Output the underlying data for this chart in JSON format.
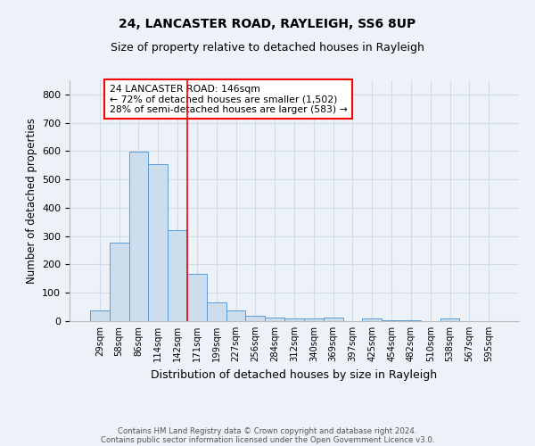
{
  "title1": "24, LANCASTER ROAD, RAYLEIGH, SS6 8UP",
  "title2": "Size of property relative to detached houses in Rayleigh",
  "xlabel": "Distribution of detached houses by size in Rayleigh",
  "ylabel": "Number of detached properties",
  "footer1": "Contains HM Land Registry data © Crown copyright and database right 2024.",
  "footer2": "Contains public sector information licensed under the Open Government Licence v3.0.",
  "bar_labels": [
    "29sqm",
    "58sqm",
    "86sqm",
    "114sqm",
    "142sqm",
    "171sqm",
    "199sqm",
    "227sqm",
    "256sqm",
    "284sqm",
    "312sqm",
    "340sqm",
    "369sqm",
    "397sqm",
    "425sqm",
    "454sqm",
    "482sqm",
    "510sqm",
    "538sqm",
    "567sqm",
    "595sqm"
  ],
  "bar_values": [
    37,
    278,
    597,
    554,
    320,
    167,
    65,
    37,
    20,
    12,
    8,
    8,
    12,
    0,
    8,
    4,
    4,
    0,
    8,
    0,
    0
  ],
  "bar_color": "#ccdded",
  "bar_edge_color": "#5b9bd5",
  "grid_color": "#d0dcea",
  "background_color": "#edf2f8",
  "red_line_x": 4.5,
  "annotation_text": "24 LANCASTER ROAD: 146sqm\n← 72% of detached houses are smaller (1,502)\n28% of semi-detached houses are larger (583) →",
  "ylim": [
    0,
    850
  ],
  "yticks": [
    0,
    100,
    200,
    300,
    400,
    500,
    600,
    700,
    800
  ]
}
